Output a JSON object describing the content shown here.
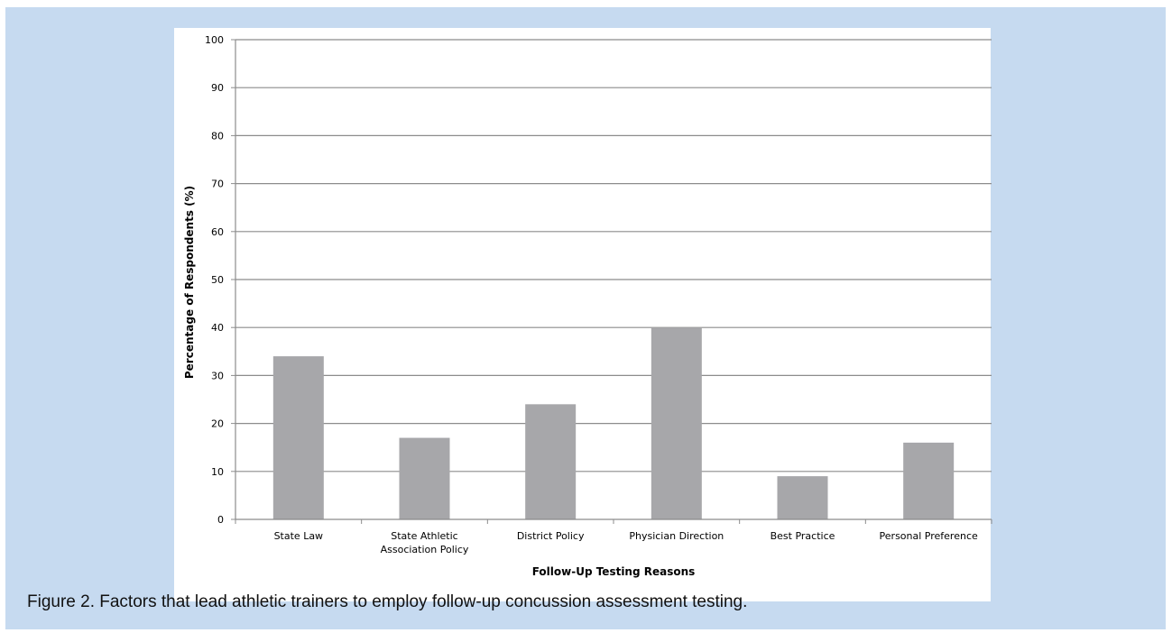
{
  "chart_data": {
    "type": "bar",
    "categories": [
      [
        "State Law"
      ],
      [
        "State Athletic",
        "Association Policy"
      ],
      [
        "District Policy"
      ],
      [
        "Physician Direction"
      ],
      [
        "Best Practice"
      ],
      [
        "Personal Preference"
      ]
    ],
    "values": [
      34,
      17,
      24,
      40,
      9,
      16
    ],
    "xlabel": "Follow-Up Testing Reasons",
    "ylabel": "Percentage of Respondents (%)",
    "ylim": [
      0,
      100
    ],
    "yticks": [
      0,
      10,
      20,
      30,
      40,
      50,
      60,
      70,
      80,
      90,
      100
    ],
    "grid": true,
    "bar_color": "#a7a7aa",
    "grid_color": "#8c8c8c"
  },
  "caption": "Figure 2.  Factors that lead athletic trainers to employ follow-up concussion assessment testing."
}
